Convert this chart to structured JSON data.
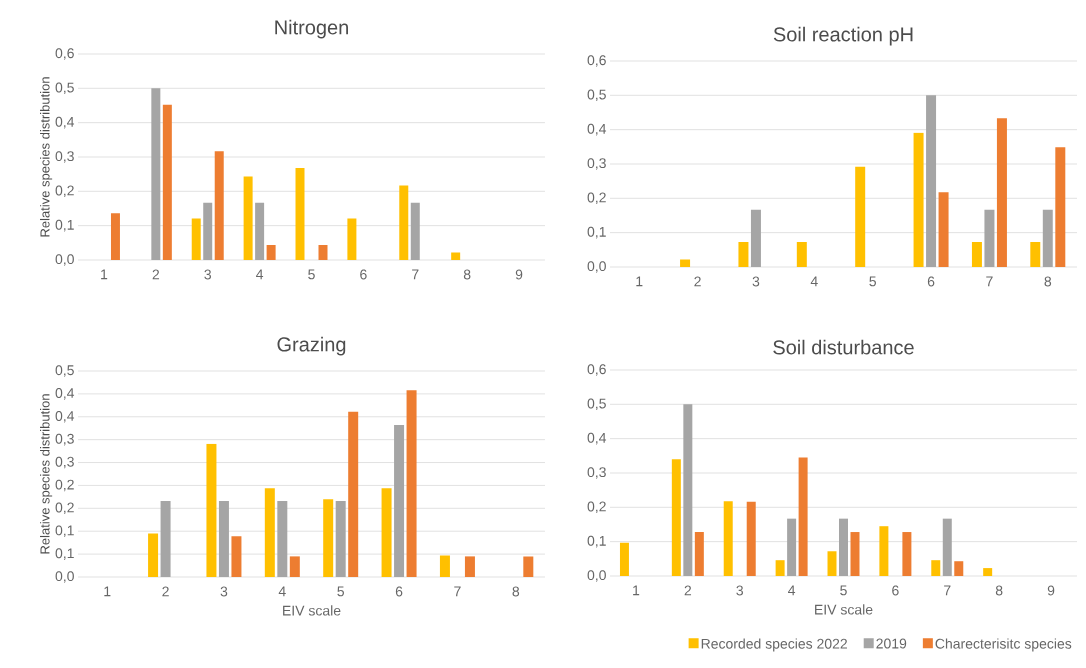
{
  "chart_data": [
    {
      "type": "bar",
      "title": "Nitrogen",
      "ylabel": "Relative species distribution",
      "categories": [
        "1",
        "2",
        "3",
        "4",
        "5",
        "6",
        "7",
        "8",
        "9"
      ],
      "series": [
        {
          "color": "#ffc000",
          "values": [
            0,
            0,
            0.121,
            0.243,
            0.268,
            0.121,
            0.217,
            0.022,
            0
          ]
        },
        {
          "color": "#a5a5a5",
          "values": [
            0,
            0.5,
            0.167,
            0.167,
            0,
            0,
            0.167,
            0,
            0
          ]
        },
        {
          "color": "#ed7d31",
          "values": [
            0.136,
            0.453,
            0.317,
            0.044,
            0.044,
            0,
            0,
            0,
            0
          ]
        }
      ],
      "ylim": [
        0,
        0.6
      ],
      "yticks": [
        {
          "value": 0,
          "label": "0,0"
        },
        {
          "value": 0.1,
          "label": "0,1"
        },
        {
          "value": 0.2,
          "label": "0,2"
        },
        {
          "value": 0.3,
          "label": "0,3"
        },
        {
          "value": 0.4,
          "label": "0,4"
        },
        {
          "value": 0.5,
          "label": "0,5"
        },
        {
          "value": 0.6,
          "label": "0,6"
        }
      ],
      "grid": "y"
    },
    {
      "type": "bar",
      "title": "Soil reaction pH",
      "categories": [
        "1",
        "2",
        "3",
        "4",
        "5",
        "6",
        "7",
        "8"
      ],
      "series": [
        {
          "color": "#ffc000",
          "values": [
            0,
            0.022,
            0.073,
            0.073,
            0.292,
            0.391,
            0.073,
            0.073
          ]
        },
        {
          "color": "#a5a5a5",
          "values": [
            0,
            0,
            0.167,
            0,
            0,
            0.5,
            0.167,
            0.167
          ]
        },
        {
          "color": "#ed7d31",
          "values": [
            0,
            0,
            0,
            0,
            0,
            0.218,
            0.433,
            0.349
          ]
        }
      ],
      "ylim": [
        0,
        0.6
      ],
      "yticks": [
        {
          "value": 0,
          "label": "0,0"
        },
        {
          "value": 0.1,
          "label": "0,1"
        },
        {
          "value": 0.2,
          "label": "0,2"
        },
        {
          "value": 0.3,
          "label": "0,3"
        },
        {
          "value": 0.4,
          "label": "0,4"
        },
        {
          "value": 0.5,
          "label": "0,5"
        },
        {
          "value": 0.6,
          "label": "0,6"
        }
      ],
      "grid": "y"
    },
    {
      "type": "bar",
      "title": "Grazing",
      "xlabel": "EIV scale",
      "ylabel": "Relative species distribution",
      "categories": [
        "1",
        "2",
        "3",
        "4",
        "5",
        "6",
        "7",
        "8"
      ],
      "series": [
        {
          "color": "#ffc000",
          "values": [
            0,
            0.095,
            0.291,
            0.194,
            0.17,
            0.194,
            0.047,
            0
          ]
        },
        {
          "color": "#a5a5a5",
          "values": [
            0,
            0.166,
            0.166,
            0.166,
            0.166,
            0.332,
            0,
            0
          ]
        },
        {
          "color": "#ed7d31",
          "values": [
            0,
            0,
            0.089,
            0.045,
            0.361,
            0.408,
            0.045,
            0.045
          ]
        }
      ],
      "ylim": [
        0,
        0.45
      ],
      "yticks": [
        {
          "value": 0,
          "label": "0,0"
        },
        {
          "value": 0.05,
          "label": "0,1"
        },
        {
          "value": 0.1,
          "label": "0,1"
        },
        {
          "value": 0.15,
          "label": "0,2"
        },
        {
          "value": 0.2,
          "label": "0,2"
        },
        {
          "value": 0.25,
          "label": "0,3"
        },
        {
          "value": 0.3,
          "label": "0,3"
        },
        {
          "value": 0.35,
          "label": "0,4"
        },
        {
          "value": 0.4,
          "label": "0,4"
        },
        {
          "value": 0.45,
          "label": "0,5"
        }
      ],
      "grid": "y"
    },
    {
      "type": "bar",
      "title": "Soil disturbance",
      "xlabel": "EIV scale",
      "categories": [
        "1",
        "2",
        "3",
        "4",
        "5",
        "6",
        "7",
        "8",
        "9"
      ],
      "series": [
        {
          "name": "Recorded species 2022",
          "color": "#ffc000",
          "values": [
            0.097,
            0.34,
            0.218,
            0.046,
            0.072,
            0.145,
            0.046,
            0.023,
            0
          ]
        },
        {
          "name": "2019",
          "color": "#a5a5a5",
          "values": [
            0,
            0.5,
            0,
            0.167,
            0.167,
            0,
            0.167,
            0,
            0
          ]
        },
        {
          "name": "Charecterisitc species",
          "color": "#ed7d31",
          "values": [
            0,
            0.128,
            0.216,
            0.345,
            0.128,
            0.128,
            0.043,
            0,
            0
          ]
        }
      ],
      "ylim": [
        0,
        0.6
      ],
      "yticks": [
        {
          "value": 0,
          "label": "0,0"
        },
        {
          "value": 0.1,
          "label": "0,1"
        },
        {
          "value": 0.2,
          "label": "0,2"
        },
        {
          "value": 0.3,
          "label": "0,3"
        },
        {
          "value": 0.4,
          "label": "0,4"
        },
        {
          "value": 0.5,
          "label": "0,5"
        },
        {
          "value": 0.6,
          "label": "0,6"
        }
      ],
      "grid": "y",
      "legend": "bottom"
    }
  ]
}
